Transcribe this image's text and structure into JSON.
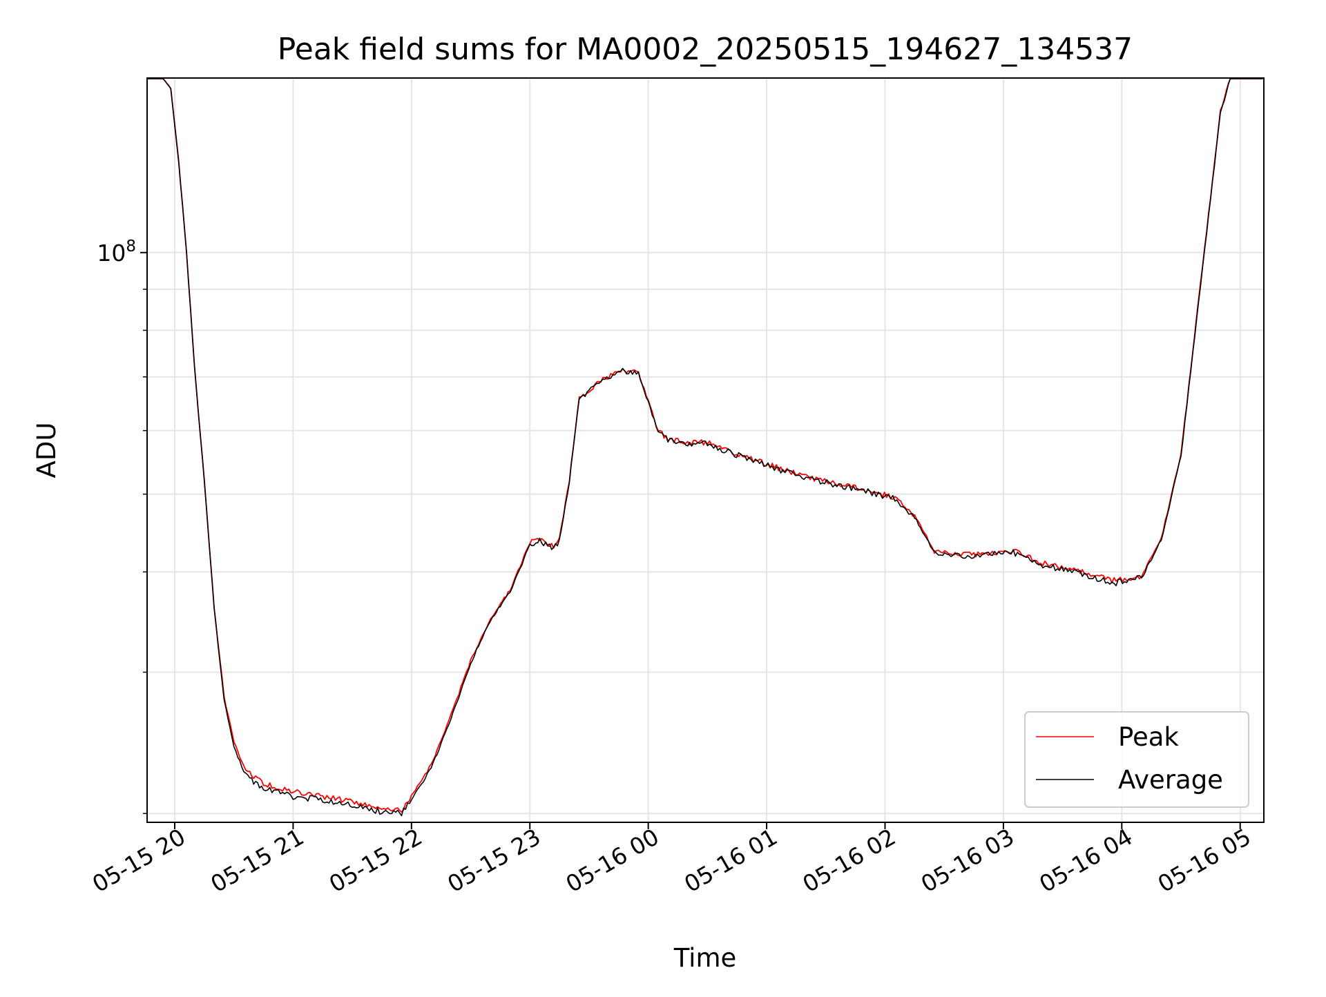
{
  "chart_data": {
    "type": "line",
    "title": "Peak field sums for MA0002_20250515_194627_134537",
    "xlabel": "Time",
    "ylabel": "ADU",
    "yscale": "log",
    "ylim": [
      19500000,
      165000000
    ],
    "xlim": [
      "05-15 19:46",
      "05-16 05:12"
    ],
    "x_ticks": [
      "05-15 20",
      "05-15 21",
      "05-15 22",
      "05-15 23",
      "05-16 00",
      "05-16 01",
      "05-16 02",
      "05-16 03",
      "05-16 04",
      "05-16 05"
    ],
    "y_tick_major": {
      "base": "10",
      "exponent": "8"
    },
    "y_minor_ticks": [
      20000000,
      30000000,
      40000000,
      50000000,
      60000000,
      70000000,
      80000000,
      90000000,
      200000000
    ],
    "grid": true,
    "legend_position": "lower right",
    "series": [
      {
        "name": "Peak",
        "color": "#ff0000",
        "points": [
          [
            "05-15 19:46",
            165000000
          ],
          [
            "05-15 19:54",
            165000000
          ],
          [
            "05-15 19:58",
            160000000
          ],
          [
            "05-15 20:02",
            130000000
          ],
          [
            "05-15 20:06",
            100000000
          ],
          [
            "05-15 20:10",
            72000000
          ],
          [
            "05-15 20:15",
            52000000
          ],
          [
            "05-15 20:20",
            36000000
          ],
          [
            "05-15 20:25",
            28000000
          ],
          [
            "05-15 20:30",
            24500000
          ],
          [
            "05-15 20:36",
            22600000
          ],
          [
            "05-15 20:45",
            21800000
          ],
          [
            "05-15 21:00",
            21300000
          ],
          [
            "05-15 21:15",
            21000000
          ],
          [
            "05-15 21:30",
            20700000
          ],
          [
            "05-15 21:45",
            20300000
          ],
          [
            "05-15 21:55",
            20200000
          ],
          [
            "05-15 22:00",
            21000000
          ],
          [
            "05-15 22:10",
            23000000
          ],
          [
            "05-15 22:20",
            26500000
          ],
          [
            "05-15 22:30",
            31000000
          ],
          [
            "05-15 22:40",
            35000000
          ],
          [
            "05-15 22:50",
            38000000
          ],
          [
            "05-15 23:00",
            43500000
          ],
          [
            "05-15 23:05",
            44000000
          ],
          [
            "05-15 23:12",
            43000000
          ],
          [
            "05-15 23:15",
            44000000
          ],
          [
            "05-15 23:20",
            52000000
          ],
          [
            "05-15 23:25",
            66000000
          ],
          [
            "05-15 23:35",
            69000000
          ],
          [
            "05-15 23:45",
            71500000
          ],
          [
            "05-15 23:55",
            71000000
          ],
          [
            "05-16 00:05",
            60000000
          ],
          [
            "05-16 00:10",
            58500000
          ],
          [
            "05-16 00:20",
            58000000
          ],
          [
            "05-16 00:30",
            58000000
          ],
          [
            "05-16 00:50",
            55500000
          ],
          [
            "05-16 01:05",
            54000000
          ],
          [
            "05-16 01:20",
            52500000
          ],
          [
            "05-16 01:45",
            51000000
          ],
          [
            "05-16 02:05",
            49500000
          ],
          [
            "05-16 02:15",
            47000000
          ],
          [
            "05-16 02:25",
            42500000
          ],
          [
            "05-16 02:45",
            42000000
          ],
          [
            "05-16 03:05",
            42500000
          ],
          [
            "05-16 03:20",
            41000000
          ],
          [
            "05-16 03:40",
            40000000
          ],
          [
            "05-16 03:55",
            39000000
          ],
          [
            "05-16 04:10",
            39500000
          ],
          [
            "05-16 04:20",
            44000000
          ],
          [
            "05-16 04:30",
            56000000
          ],
          [
            "05-16 04:40",
            92000000
          ],
          [
            "05-16 04:50",
            150000000
          ],
          [
            "05-16 04:55",
            165000000
          ],
          [
            "05-16 05:12",
            165000000
          ]
        ]
      },
      {
        "name": "Average",
        "color": "#000000",
        "points": [
          [
            "05-15 19:46",
            165000000
          ],
          [
            "05-15 19:54",
            165000000
          ],
          [
            "05-15 19:58",
            160000000
          ],
          [
            "05-15 20:02",
            130000000
          ],
          [
            "05-15 20:06",
            100000000
          ],
          [
            "05-15 20:10",
            72000000
          ],
          [
            "05-15 20:15",
            52000000
          ],
          [
            "05-15 20:20",
            36000000
          ],
          [
            "05-15 20:25",
            27800000
          ],
          [
            "05-15 20:30",
            24200000
          ],
          [
            "05-15 20:36",
            22300000
          ],
          [
            "05-15 20:45",
            21500000
          ],
          [
            "05-15 21:00",
            21000000
          ],
          [
            "05-15 21:15",
            20800000
          ],
          [
            "05-15 21:30",
            20500000
          ],
          [
            "05-15 21:45",
            20100000
          ],
          [
            "05-15 21:55",
            20000000
          ],
          [
            "05-15 22:00",
            20800000
          ],
          [
            "05-15 22:10",
            22800000
          ],
          [
            "05-15 22:20",
            26200000
          ],
          [
            "05-15 22:30",
            30800000
          ],
          [
            "05-15 22:40",
            34800000
          ],
          [
            "05-15 22:50",
            37800000
          ],
          [
            "05-15 23:00",
            43200000
          ],
          [
            "05-15 23:05",
            43800000
          ],
          [
            "05-15 23:12",
            42800000
          ],
          [
            "05-15 23:15",
            43800000
          ],
          [
            "05-15 23:20",
            51800000
          ],
          [
            "05-15 23:25",
            65800000
          ],
          [
            "05-15 23:35",
            68800000
          ],
          [
            "05-15 23:45",
            71300000
          ],
          [
            "05-15 23:55",
            70800000
          ],
          [
            "05-16 00:05",
            59800000
          ],
          [
            "05-16 00:10",
            58300000
          ],
          [
            "05-16 00:20",
            57800000
          ],
          [
            "05-16 00:30",
            57800000
          ],
          [
            "05-16 00:50",
            55300000
          ],
          [
            "05-16 01:05",
            53800000
          ],
          [
            "05-16 01:20",
            52300000
          ],
          [
            "05-16 01:45",
            50800000
          ],
          [
            "05-16 02:05",
            49300000
          ],
          [
            "05-16 02:15",
            46800000
          ],
          [
            "05-16 02:25",
            42300000
          ],
          [
            "05-16 02:45",
            41800000
          ],
          [
            "05-16 03:05",
            42300000
          ],
          [
            "05-16 03:20",
            40800000
          ],
          [
            "05-16 03:40",
            39800000
          ],
          [
            "05-16 03:55",
            38700000
          ],
          [
            "05-16 04:10",
            39300000
          ],
          [
            "05-16 04:20",
            43800000
          ],
          [
            "05-16 04:30",
            55800000
          ],
          [
            "05-16 04:40",
            91500000
          ],
          [
            "05-16 04:50",
            149000000
          ],
          [
            "05-16 04:55",
            165000000
          ],
          [
            "05-16 05:12",
            165000000
          ]
        ]
      }
    ]
  }
}
